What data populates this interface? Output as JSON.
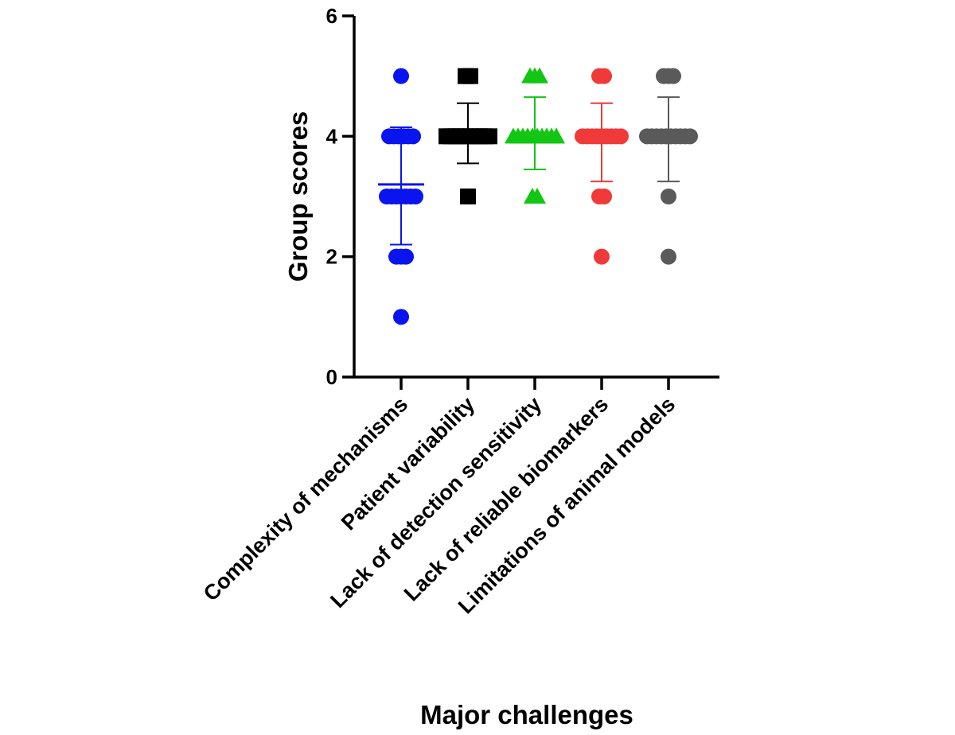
{
  "chart_data": {
    "type": "scatter",
    "subtype": "dot-plot with mean and SD error bars",
    "xlabel": "Major challenges",
    "ylabel": "Group scores",
    "ylim": [
      0,
      6
    ],
    "yticks": [
      "0",
      "2",
      "4",
      "6"
    ],
    "grid": false,
    "legend": "none",
    "categories": [
      "Complexity of mechanisms",
      "Patient variability",
      "Lack of detection sensitivity",
      "Lack of reliable biomarkers",
      "Limitations of animal models"
    ],
    "series": [
      {
        "marker": "circle",
        "color": "#0a14ee",
        "points": [
          5,
          4,
          4,
          4,
          4,
          4,
          4,
          3,
          3,
          3,
          3,
          3,
          3,
          3,
          2,
          2,
          2,
          1
        ],
        "mean": 3.2,
        "sd_low": 2.2,
        "sd_high": 4.15
      },
      {
        "marker": "square",
        "color": "#000000",
        "points": [
          5,
          5,
          4,
          4,
          4,
          4,
          4,
          4,
          4,
          4,
          4,
          4,
          3
        ],
        "mean": 4.05,
        "sd_low": 3.55,
        "sd_high": 4.55
      },
      {
        "marker": "triangle",
        "color": "#13c613",
        "points": [
          5,
          5,
          5,
          4,
          4,
          4,
          4,
          4,
          4,
          4,
          4,
          4,
          4,
          3,
          3
        ],
        "mean": 4.05,
        "sd_low": 3.45,
        "sd_high": 4.65
      },
      {
        "marker": "circle",
        "color": "#f03a3a",
        "points": [
          5,
          5,
          4,
          4,
          4,
          4,
          4,
          4,
          4,
          4,
          4,
          3,
          3,
          2
        ],
        "mean": 3.9,
        "sd_low": 3.25,
        "sd_high": 4.55
      },
      {
        "marker": "circle",
        "color": "#5a5a5a",
        "points": [
          5,
          5,
          5,
          4,
          4,
          4,
          4,
          4,
          4,
          4,
          4,
          4,
          4,
          3,
          2
        ],
        "mean": 4.0,
        "sd_low": 3.25,
        "sd_high": 4.65
      }
    ]
  }
}
